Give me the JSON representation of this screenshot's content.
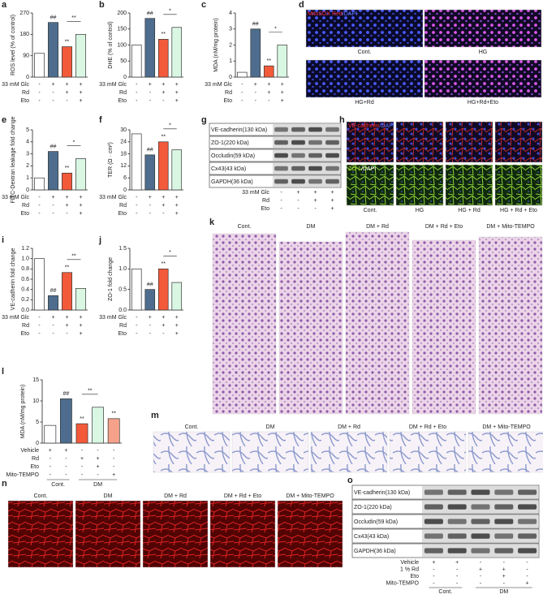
{
  "chart_data": [
    {
      "type": "bar",
      "panel": "a",
      "ylabel": "ROS level (% of control)",
      "ylim": [
        0,
        270
      ],
      "yticks": [
        0,
        90,
        180,
        270
      ],
      "values": [
        100,
        230,
        128,
        180
      ],
      "colors": [
        "#ffffff",
        "#4e6d8e",
        "#f35a3a",
        "#d9f7e3"
      ],
      "annotations": [
        null,
        "##",
        "**",
        null
      ],
      "bracket_label": "**",
      "conditions": [
        {
          "label": "33 mM Glc",
          "signs": [
            "-",
            "+",
            "+",
            "+"
          ]
        },
        {
          "label": "Rd",
          "signs": [
            "-",
            "-",
            "+",
            "+"
          ]
        },
        {
          "label": "Eto",
          "signs": [
            "-",
            "-",
            "-",
            "+"
          ]
        }
      ]
    },
    {
      "type": "bar",
      "panel": "b",
      "ylabel": "DHE (% of control)",
      "ylim": [
        0,
        200
      ],
      "yticks": [
        0,
        50,
        100,
        150,
        200
      ],
      "values": [
        100,
        183,
        118,
        155
      ],
      "colors": [
        "#ffffff",
        "#4e6d8e",
        "#f35a3a",
        "#d9f7e3"
      ],
      "annotations": [
        null,
        "##",
        "**",
        null
      ],
      "bracket_label": "*",
      "conditions": [
        {
          "label": "33 mM Glc",
          "signs": [
            "-",
            "+",
            "+",
            "+"
          ]
        },
        {
          "label": "Rd",
          "signs": [
            "-",
            "-",
            "+",
            "+"
          ]
        },
        {
          "label": "Eto",
          "signs": [
            "-",
            "-",
            "-",
            "+"
          ]
        }
      ]
    },
    {
      "type": "bar",
      "panel": "c",
      "ylabel": "MDA (nM/mg protein)",
      "ylim": [
        0,
        4
      ],
      "yticks": [
        0,
        1,
        2,
        3,
        4
      ],
      "values": [
        0.3,
        3.0,
        0.7,
        2.0
      ],
      "colors": [
        "#ffffff",
        "#4e6d8e",
        "#f35a3a",
        "#d9f7e3"
      ],
      "annotations": [
        null,
        "##",
        "**",
        null
      ],
      "bracket_label": "*",
      "conditions": [
        {
          "label": "33 mM Glc",
          "signs": [
            "-",
            "+",
            "+",
            "+"
          ]
        },
        {
          "label": "Rd",
          "signs": [
            "-",
            "-",
            "+",
            "+"
          ]
        },
        {
          "label": "Eto",
          "signs": [
            "-",
            "-",
            "-",
            "+"
          ]
        }
      ]
    },
    {
      "type": "bar",
      "panel": "e",
      "ylabel": "FITC-Dextran leakage fold change",
      "ylim": [
        0,
        5
      ],
      "yticks": [
        0,
        1,
        2,
        3,
        4,
        5
      ],
      "values": [
        1.0,
        3.2,
        1.4,
        2.6
      ],
      "colors": [
        "#ffffff",
        "#4e6d8e",
        "#f35a3a",
        "#d9f7e3"
      ],
      "annotations": [
        null,
        "##",
        "**",
        null
      ],
      "bracket_label": "*",
      "conditions": [
        {
          "label": "33 mM Glc",
          "signs": [
            "-",
            "+",
            "+",
            "+"
          ]
        },
        {
          "label": "Rd",
          "signs": [
            "-",
            "-",
            "+",
            "+"
          ]
        },
        {
          "label": "Eto",
          "signs": [
            "-",
            "-",
            "-",
            "+"
          ]
        }
      ]
    },
    {
      "type": "bar",
      "panel": "f",
      "ylabel": "TER (Ω · cm²)",
      "ylim": [
        0,
        30
      ],
      "yticks": [
        0,
        6,
        12,
        18,
        24,
        30
      ],
      "values": [
        28,
        17.5,
        24,
        20
      ],
      "colors": [
        "#ffffff",
        "#4e6d8e",
        "#f35a3a",
        "#d9f7e3"
      ],
      "annotations": [
        null,
        "##",
        "**",
        null
      ],
      "bracket_label": "*",
      "conditions": [
        {
          "label": "33 mM Glc",
          "signs": [
            "-",
            "+",
            "+",
            "+"
          ]
        },
        {
          "label": "Rd",
          "signs": [
            "-",
            "-",
            "+",
            "+"
          ]
        },
        {
          "label": "Eto",
          "signs": [
            "-",
            "-",
            "-",
            "+"
          ]
        }
      ]
    },
    {
      "type": "bar",
      "panel": "i",
      "ylabel": "VE-cadherin fold change",
      "ylim": [
        0,
        1.2
      ],
      "yticks": [
        {
          "value": 0,
          "label": "0.0"
        },
        0.2,
        0.4,
        0.6,
        0.8,
        {
          "value": 1,
          "label": "1.0"
        },
        1.2
      ],
      "values": [
        1.0,
        0.28,
        0.73,
        0.42
      ],
      "colors": [
        "#ffffff",
        "#4e6d8e",
        "#f35a3a",
        "#d9f7e3"
      ],
      "annotations": [
        null,
        "##",
        "**",
        null
      ],
      "bracket_label": "**",
      "conditions": [
        {
          "label": "33 mM Glc",
          "signs": [
            "-",
            "+",
            "+",
            "+"
          ]
        },
        {
          "label": "Rd",
          "signs": [
            "-",
            "-",
            "+",
            "+"
          ]
        },
        {
          "label": "Eto",
          "signs": [
            "-",
            "-",
            "-",
            "+"
          ]
        }
      ]
    },
    {
      "type": "bar",
      "panel": "j",
      "ylabel": "ZO-1 fold change",
      "ylim": [
        0,
        1.5
      ],
      "yticks": [
        {
          "value": 0,
          "label": "0.0"
        },
        0.5,
        {
          "value": 1,
          "label": "1.0"
        },
        1.5
      ],
      "values": [
        1.0,
        0.5,
        1.0,
        0.67
      ],
      "colors": [
        "#ffffff",
        "#4e6d8e",
        "#f35a3a",
        "#d9f7e3"
      ],
      "annotations": [
        null,
        "##",
        "**",
        null
      ],
      "bracket_label": "*",
      "conditions": [
        {
          "label": "33 mM Glc",
          "signs": [
            "-",
            "+",
            "+",
            "+"
          ]
        },
        {
          "label": "Rd",
          "signs": [
            "-",
            "-",
            "+",
            "+"
          ]
        },
        {
          "label": "Eto",
          "signs": [
            "-",
            "-",
            "-",
            "+"
          ]
        }
      ]
    },
    {
      "type": "bar",
      "panel": "l",
      "ylabel": "MDA (nM/mg protein)",
      "ylim": [
        0,
        15
      ],
      "yticks": [
        0,
        5,
        10,
        15
      ],
      "values": [
        4.2,
        10.5,
        4.6,
        8.5,
        5.8
      ],
      "colors": [
        "#ffffff",
        "#4e6d8e",
        "#f35a3a",
        "#d9f7e3",
        "#f6a18a"
      ],
      "annotations": [
        null,
        "##",
        "**",
        null,
        "**"
      ],
      "bracket_label": "**",
      "conditions": [
        {
          "label": "Vehicle",
          "signs": [
            "+",
            "+",
            "-",
            "-",
            "-"
          ]
        },
        {
          "label": "Rd",
          "signs": [
            "-",
            "-",
            "+",
            "+",
            "-"
          ]
        },
        {
          "label": "Eto",
          "signs": [
            "-",
            "-",
            "-",
            "+",
            "-"
          ]
        },
        {
          "label": "Mito-TEMPO",
          "signs": [
            "-",
            "-",
            "-",
            "-",
            "+"
          ]
        }
      ],
      "groups": [
        "Cont.",
        "DM"
      ]
    }
  ],
  "blots": [
    {
      "panel": "g",
      "proteins": [
        "VE-cadherin(130 kDa)",
        "ZO-1(220 kDa)",
        "Occludin(59 kDa)",
        "Cx43(43 kDa)",
        "GAPDH(36 kDa)"
      ],
      "conditions": [
        {
          "label": "33 mM Glc",
          "signs": [
            "-",
            "+",
            "+",
            "+"
          ]
        },
        {
          "label": "Rd",
          "signs": [
            "-",
            "-",
            "+",
            "+"
          ]
        },
        {
          "label": "Eto",
          "signs": [
            "-",
            "-",
            "-",
            "+"
          ]
        }
      ]
    },
    {
      "panel": "o",
      "proteins": [
        "VE-cadherin(130 kDa)",
        "ZO-1(220 kDa)",
        "Occludin(59 kDa)",
        "Cx43(43 kDa)",
        "GAPDH(36 kDa)"
      ],
      "conditions": [
        {
          "label": "Vehicle",
          "signs": [
            "+",
            "+",
            "-",
            "-",
            "-"
          ]
        },
        {
          "label": "1 % Rd",
          "signs": [
            "-",
            "-",
            "+",
            "+",
            "-"
          ]
        },
        {
          "label": "Eto",
          "signs": [
            "-",
            "-",
            "-",
            "+",
            "-"
          ]
        },
        {
          "label": "Mito-TEMPO",
          "signs": [
            "-",
            "-",
            "-",
            "-",
            "+"
          ]
        }
      ],
      "groups": [
        "Cont.",
        "DM"
      ]
    }
  ],
  "micrographs": [
    {
      "panel": "d",
      "stains": [
        [
          "MitoSOX Red",
          "/DAPI"
        ]
      ],
      "captions": [
        "Cont.",
        "HG",
        "HG+Rd",
        "HG+Rd+Eto"
      ]
    },
    {
      "panel": "h",
      "stains": [
        [
          "VE-cadherin",
          "/DAPI"
        ],
        [
          "ZO-1",
          "/DAPI"
        ]
      ],
      "captions": [
        "Cont.",
        "HG",
        "HG + Rd",
        "HG + Rd + Eto"
      ]
    },
    {
      "panel": "k",
      "captions": [
        "Cont.",
        "DM",
        "DM + Rd",
        "DM + Rd + Eto",
        "DM + Mito-TEMPO"
      ]
    },
    {
      "panel": "m",
      "captions": [
        "Cont.",
        "DM",
        "DM + Rd",
        "DM + Rd + Eto",
        "DM + Mito-TEMPO"
      ]
    },
    {
      "panel": "n",
      "captions": [
        "Cont.",
        "DM",
        "DM + Rd",
        "DM + Rd + Eto",
        "DM + Mito-TEMPO"
      ]
    }
  ]
}
